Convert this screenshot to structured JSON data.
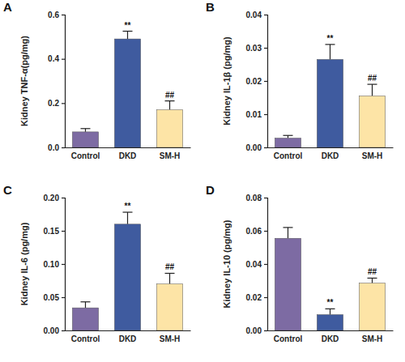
{
  "chart_data": [
    {
      "type": "bar",
      "panel": "A",
      "y_label": "Kidney TNF-α(pg/mg)",
      "categories": [
        "Control",
        "DKD",
        "SM-H"
      ],
      "values": [
        0.07,
        0.49,
        0.17
      ],
      "errors": [
        0.015,
        0.035,
        0.04
      ],
      "colors": [
        "#7d6ba3",
        "#3f5b9f",
        "#fde4a6"
      ],
      "ylim": [
        0,
        0.6
      ],
      "yticks": [
        {
          "value": 0,
          "label": "0.0"
        },
        0.2,
        0.4,
        0.6
      ],
      "annotations": [
        {
          "category": "DKD",
          "text": "**"
        },
        {
          "category": "SM-H",
          "text": "##"
        }
      ]
    },
    {
      "type": "bar",
      "panel": "B",
      "y_label": "Kidney IL-1β (pg/mg)",
      "categories": [
        "Control",
        "DKD",
        "SM-H"
      ],
      "values": [
        0.0028,
        0.0265,
        0.0155
      ],
      "errors": [
        0.0008,
        0.0045,
        0.0035
      ],
      "colors": [
        "#7d6ba3",
        "#3f5b9f",
        "#fde4a6"
      ],
      "ylim": [
        0,
        0.04
      ],
      "yticks": [
        {
          "value": 0,
          "label": "0.00"
        },
        0.01,
        0.02,
        0.03,
        0.04
      ],
      "annotations": [
        {
          "category": "DKD",
          "text": "**"
        },
        {
          "category": "SM-H",
          "text": "##"
        }
      ]
    },
    {
      "type": "bar",
      "panel": "C",
      "y_label": "Kidney IL-6 (pg/mg)",
      "categories": [
        "Control",
        "DKD",
        "SM-H"
      ],
      "values": [
        0.034,
        0.16,
        0.07
      ],
      "errors": [
        0.009,
        0.018,
        0.016
      ],
      "colors": [
        "#7d6ba3",
        "#3f5b9f",
        "#fde4a6"
      ],
      "ylim": [
        0,
        0.2
      ],
      "yticks": [
        {
          "value": 0,
          "label": "0.00"
        },
        0.05,
        {
          "value": 0.1,
          "label": "0.10"
        },
        0.15,
        {
          "value": 0.2,
          "label": "0.20"
        }
      ],
      "annotations": [
        {
          "category": "DKD",
          "text": "**"
        },
        {
          "category": "SM-H",
          "text": "##"
        }
      ]
    },
    {
      "type": "bar",
      "panel": "D",
      "y_label": "Kidney IL-10 (pg/mg)",
      "categories": [
        "Control",
        "DKD",
        "SM-H"
      ],
      "values": [
        0.0555,
        0.0095,
        0.0285
      ],
      "errors": [
        0.0065,
        0.0035,
        0.003
      ],
      "colors": [
        "#7d6ba3",
        "#3f5b9f",
        "#fde4a6"
      ],
      "ylim": [
        0,
        0.08
      ],
      "yticks": [
        {
          "value": 0,
          "label": "0.00"
        },
        0.02,
        0.04,
        0.06,
        0.08
      ],
      "annotations": [
        {
          "category": "DKD",
          "text": "**"
        },
        {
          "category": "SM-H",
          "text": "##"
        }
      ]
    }
  ]
}
